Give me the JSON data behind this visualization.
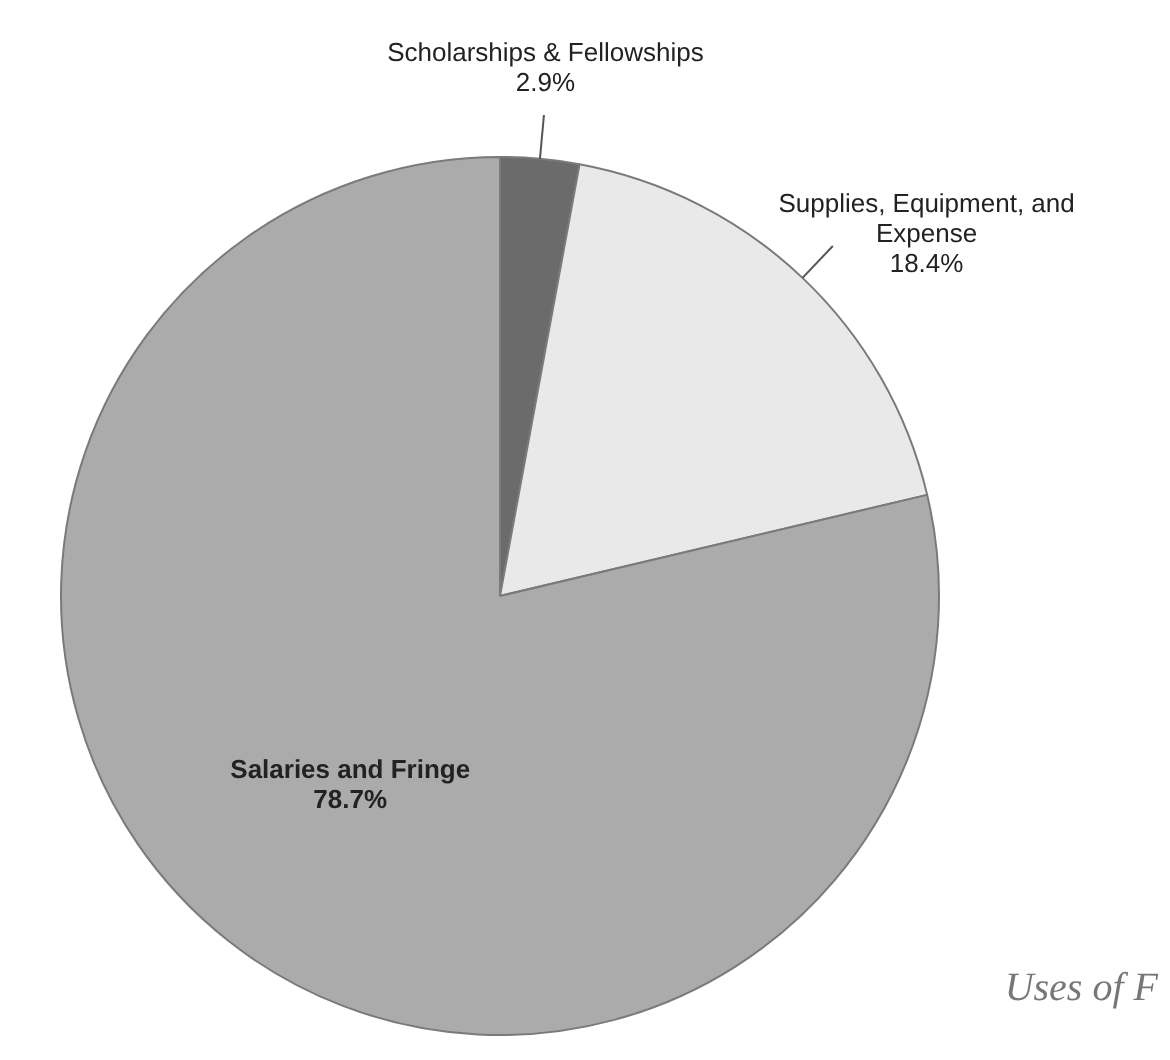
{
  "chart_data": {
    "type": "pie",
    "categories": [
      "Scholarships & Fellowships",
      "Supplies, Equipment, and Expense",
      "Salaries and Fringe"
    ],
    "values": [
      2.9,
      18.4,
      78.7
    ],
    "colors": [
      "#6b6b6b",
      "#e9e9e9",
      "#ababab"
    ],
    "value_labels": [
      "2.9%",
      "18.4%",
      "78.7%"
    ],
    "legend": false,
    "annotations": [
      "Uses of F"
    ]
  }
}
